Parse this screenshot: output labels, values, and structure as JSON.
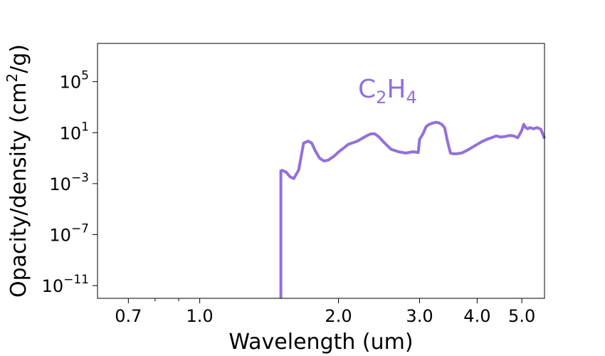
{
  "chart_data": {
    "type": "line",
    "xlabel": "Wavelength  (um)",
    "ylabel_main": "Opacity/density  (cm",
    "ylabel_sup": "2",
    "ylabel_tail": "/g)",
    "xscale": "log",
    "yscale": "log",
    "xlim": [
      0.6,
      5.6
    ],
    "ylim": [
      1e-12,
      100000000.0
    ],
    "grid": false,
    "line_color": "#9370db",
    "annotation": {
      "C": "C",
      "sub1": "2",
      "H": "H",
      "sub2": "4"
    },
    "x_ticks": [
      {
        "value": 0.7,
        "label": "0.7"
      },
      {
        "value": 1.0,
        "label": "1.0"
      },
      {
        "value": 2.0,
        "label": "2.0"
      },
      {
        "value": 3.0,
        "label": "3.0"
      },
      {
        "value": 4.0,
        "label": "4.0"
      },
      {
        "value": 5.0,
        "label": "5.0"
      }
    ],
    "x_minor_ticks": [
      0.8,
      0.9
    ],
    "y_ticks": [
      {
        "value": 100000.0,
        "base": "10",
        "exp": "5"
      },
      {
        "value": 10.0,
        "base": "10",
        "exp": "1"
      },
      {
        "value": 0.001,
        "base": "10",
        "exp": "−3"
      },
      {
        "value": 1e-07,
        "base": "10",
        "exp": "−7"
      },
      {
        "value": 1e-11,
        "base": "10",
        "exp": "−11"
      }
    ],
    "series": [
      {
        "x": [
          1.5,
          1.5,
          1.51,
          1.54,
          1.57,
          1.6,
          1.64,
          1.68,
          1.72,
          1.75,
          1.78,
          1.82,
          1.86,
          1.9,
          1.95,
          2.0,
          2.05,
          2.1,
          2.15,
          2.2,
          2.25,
          2.3,
          2.35,
          2.4,
          2.45,
          2.5,
          2.55,
          2.6,
          2.7,
          2.8,
          2.9,
          2.98,
          3.0,
          3.05,
          3.1,
          3.15,
          3.2,
          3.25,
          3.3,
          3.35,
          3.4,
          3.45,
          3.5,
          3.55,
          3.6,
          3.7,
          3.8,
          3.9,
          4.0,
          4.1,
          4.2,
          4.3,
          4.4,
          4.5,
          4.6,
          4.7,
          4.8,
          4.9,
          5.0,
          5.05,
          5.1,
          5.15,
          5.2,
          5.3,
          5.4,
          5.5,
          5.6
        ],
        "y": [
          1e-14,
          0.01,
          0.011,
          0.008,
          0.0035,
          0.0025,
          0.012,
          1.5,
          2.2,
          1.5,
          0.4,
          0.1,
          0.06,
          0.07,
          0.13,
          0.3,
          0.6,
          1.2,
          1.6,
          2.2,
          3.5,
          5.5,
          8,
          8,
          4.5,
          2.0,
          1.0,
          0.5,
          0.32,
          0.25,
          0.32,
          0.28,
          3.0,
          8,
          30,
          45,
          55,
          65,
          60,
          45,
          25,
          2.0,
          0.25,
          0.22,
          0.22,
          0.25,
          0.4,
          0.7,
          1.2,
          2.0,
          3.0,
          4.0,
          5.5,
          4.5,
          5.0,
          6.0,
          5.5,
          4.0,
          15,
          45,
          25,
          20,
          25,
          20,
          25,
          18,
          3.5
        ]
      }
    ]
  }
}
